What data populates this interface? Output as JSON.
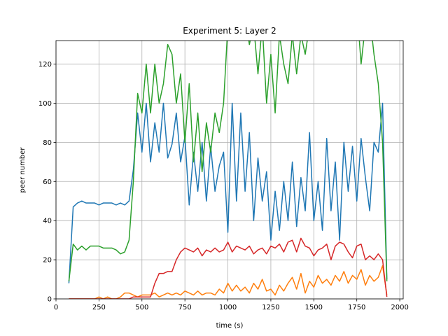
{
  "chart_data": {
    "type": "line",
    "title": "Experiment 5: Layer 2",
    "xlabel": "time (s)",
    "ylabel": "peer number",
    "x": [
      75,
      100,
      125,
      150,
      175,
      200,
      225,
      250,
      275,
      300,
      325,
      350,
      375,
      400,
      425,
      450,
      475,
      500,
      525,
      550,
      575,
      600,
      625,
      650,
      675,
      700,
      725,
      750,
      775,
      800,
      825,
      850,
      875,
      900,
      925,
      950,
      975,
      1000,
      1025,
      1050,
      1075,
      1100,
      1125,
      1150,
      1175,
      1200,
      1225,
      1250,
      1275,
      1300,
      1325,
      1350,
      1375,
      1400,
      1425,
      1450,
      1475,
      1500,
      1525,
      1550,
      1575,
      1600,
      1625,
      1650,
      1675,
      1700,
      1725,
      1750,
      1775,
      1800,
      1825,
      1850,
      1875,
      1900,
      1925
    ],
    "series": [
      {
        "color": "#1f77b4",
        "values": [
          8,
          47,
          49,
          50,
          49,
          49,
          49,
          48,
          49,
          49,
          49,
          48,
          49,
          48,
          50,
          66,
          95,
          75,
          100,
          70,
          90,
          75,
          100,
          72,
          79,
          95,
          70,
          83,
          48,
          75,
          55,
          80,
          50,
          78,
          55,
          68,
          75,
          34,
          100,
          50,
          95,
          55,
          85,
          40,
          72,
          50,
          65,
          30,
          55,
          35,
          60,
          40,
          70,
          37,
          62,
          45,
          85,
          40,
          60,
          35,
          82,
          45,
          70,
          30,
          80,
          55,
          78,
          50,
          82,
          62,
          45,
          80,
          75,
          100,
          10
        ]
      },
      {
        "color": "#ff7f0e",
        "values": [
          0,
          0,
          0,
          0,
          0,
          0,
          0,
          1,
          0,
          1,
          0,
          0,
          1,
          3,
          3,
          2,
          1,
          2,
          2,
          2,
          3,
          1,
          2,
          3,
          2,
          3,
          2,
          4,
          3,
          2,
          4,
          2,
          3,
          3,
          2,
          5,
          3,
          8,
          4,
          7,
          4,
          6,
          3,
          8,
          5,
          10,
          4,
          5,
          2,
          7,
          4,
          8,
          11,
          5,
          13,
          3,
          9,
          6,
          12,
          8,
          10,
          7,
          12,
          9,
          14,
          8,
          12,
          10,
          15,
          7,
          12,
          9,
          11,
          17,
          2
        ]
      },
      {
        "color": "#2ca02c",
        "values": [
          9,
          28,
          25,
          27,
          25,
          27,
          27,
          27,
          26,
          26,
          26,
          25,
          23,
          24,
          30,
          60,
          105,
          95,
          120,
          95,
          120,
          100,
          110,
          130,
          125,
          100,
          115,
          80,
          110,
          70,
          95,
          65,
          90,
          75,
          95,
          85,
          100,
          140,
          145,
          135,
          150,
          145,
          130,
          140,
          115,
          140,
          100,
          125,
          95,
          135,
          120,
          110,
          135,
          115,
          135,
          125,
          140,
          135,
          145,
          150,
          140,
          150,
          145,
          140,
          150,
          135,
          145,
          150,
          120,
          140,
          145,
          125,
          110,
          80,
          9
        ]
      },
      {
        "color": "#d62728",
        "values": [
          0,
          0,
          0,
          0,
          0,
          0,
          0,
          0,
          0,
          0,
          0,
          0,
          0,
          0,
          0,
          1,
          1,
          1,
          1,
          1,
          8,
          13,
          13,
          14,
          14,
          20,
          24,
          26,
          25,
          24,
          26,
          22,
          25,
          24,
          26,
          24,
          25,
          29,
          24,
          27,
          26,
          25,
          27,
          23,
          25,
          26,
          23,
          27,
          26,
          28,
          24,
          29,
          30,
          24,
          31,
          27,
          26,
          22,
          25,
          26,
          28,
          20,
          27,
          29,
          28,
          24,
          21,
          27,
          28,
          20,
          22,
          20,
          23,
          20,
          1
        ]
      }
    ],
    "xlim": [
      0,
      2020
    ],
    "ylim": [
      0,
      132
    ],
    "xticks": [
      0,
      250,
      500,
      750,
      1000,
      1250,
      1500,
      1750,
      2000
    ],
    "yticks": [
      0,
      20,
      40,
      60,
      80,
      100,
      120
    ],
    "grid": true
  }
}
